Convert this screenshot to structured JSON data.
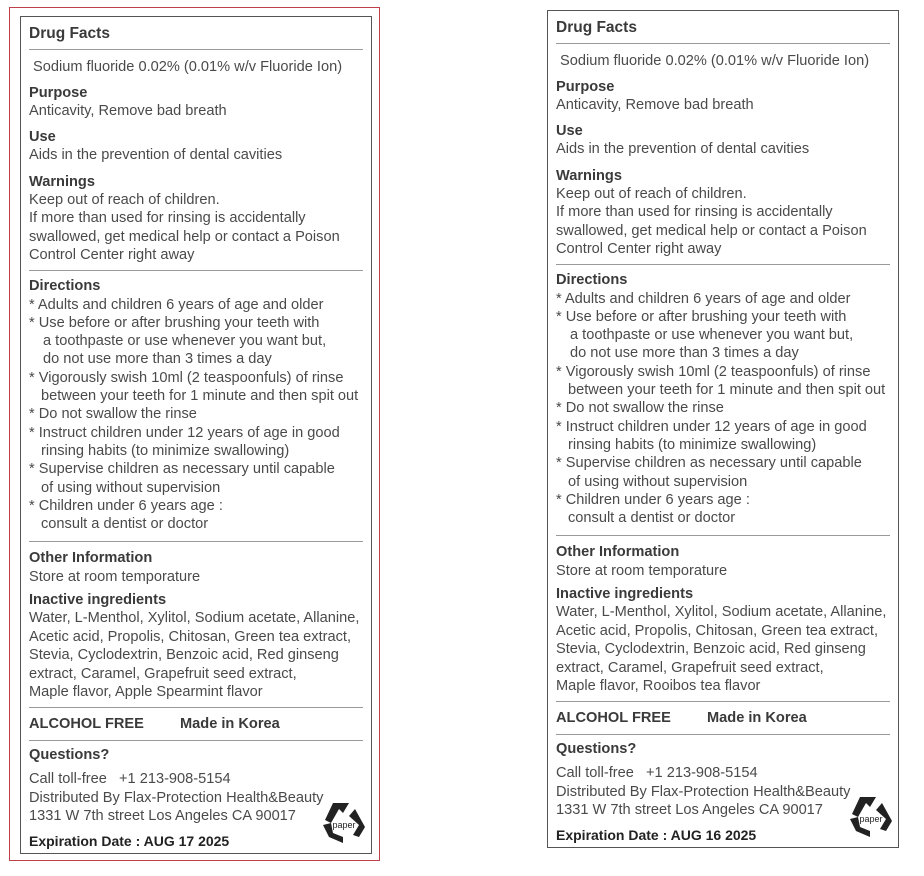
{
  "labels": [
    {
      "title": "Drug Facts",
      "active": "Sodium fluoride  0.02%  (0.01% w/v Fluoride Ion)",
      "purpose_heading": "Purpose",
      "purpose": "Anticavity, Remove bad breath",
      "use_heading": "Use",
      "use": "Aids in the prevention of dental cavities",
      "warnings_heading": "Warnings",
      "warnings": [
        "Keep out of reach of children.",
        "If more than used for rinsing is accidentally",
        "swallowed, get medical help or contact a Poison",
        "Control Center right away"
      ],
      "directions_heading": "Directions",
      "directions": [
        [
          "* Adults and children 6 years of age and older"
        ],
        [
          "* Use before or after brushing your teeth with",
          "a toothpaste or use whenever you want but,",
          "do not use more than 3 times a day"
        ],
        [
          "* Vigorously swish 10ml (2 teaspoonfuls) of rinse",
          "between your teeth for 1 minute and then spit out"
        ],
        [
          "* Do not swallow the rinse"
        ],
        [
          "* Instruct children under 12 years of age in good",
          "rinsing habits (to minimize swallowing)"
        ],
        [
          "* Supervise children as necessary until capable",
          "of using without supervision"
        ],
        [
          "* Children under 6 years age :",
          "consult a dentist or doctor"
        ]
      ],
      "other_heading": "Other Information",
      "other": "Store at room temporature",
      "inactive_heading": "Inactive ingredients",
      "inactive": [
        "Water, L-Menthol, Xylitol, Sodium acetate, Allanine,",
        "Acetic acid, Propolis, Chitosan, Green tea extract,",
        "Stevia, Cyclodextrin, Benzoic acid, Red ginseng",
        "extract, Caramel, Grapefruit seed extract,",
        "Maple flavor, Apple Spearmint flavor"
      ],
      "alcohol_free": "ALCOHOL FREE",
      "made_in": "Made in Korea",
      "questions_heading": "Questions?",
      "call": "Call toll-free   +1 213-908-5154",
      "distributor": "Distributed By Flax-Protection Health&Beauty",
      "address": "1331 W 7th street Los Angeles CA 90017",
      "expiration": "Expiration Date : AUG 17 2025",
      "recycle_text": "paper",
      "recycle_icon": "recycle-paper-icon"
    },
    {
      "title": "Drug Facts",
      "active": "Sodium fluoride  0.02%  (0.01% w/v Fluoride Ion)",
      "purpose_heading": "Purpose",
      "purpose": "Anticavity, Remove bad breath",
      "use_heading": "Use",
      "use": "Aids in the prevention of dental cavities",
      "warnings_heading": "Warnings",
      "warnings": [
        "Keep out of reach of children.",
        "If more than used for rinsing is accidentally",
        "swallowed, get medical help or contact a Poison",
        "Control Center right away"
      ],
      "directions_heading": "Directions",
      "directions": [
        [
          "* Adults and children 6 years of age and older"
        ],
        [
          "* Use before or after brushing your teeth with",
          "a toothpaste or use whenever you want but,",
          "do not use more than 3 times a day"
        ],
        [
          "* Vigorously swish 10ml (2 teaspoonfuls) of rinse",
          "between your teeth for 1 minute and then spit out"
        ],
        [
          "* Do not swallow the rinse"
        ],
        [
          "* Instruct children under 12 years of age in good",
          "rinsing habits (to minimize swallowing)"
        ],
        [
          "* Supervise children as necessary until capable",
          "of using without supervision"
        ],
        [
          "* Children under 6 years age :",
          "consult a dentist or doctor"
        ]
      ],
      "other_heading": "Other Information",
      "other": "Store at room temporature",
      "inactive_heading": "Inactive ingredients",
      "inactive": [
        "Water, L-Menthol, Xylitol, Sodium acetate, Allanine,",
        "Acetic acid, Propolis, Chitosan, Green tea extract,",
        "Stevia, Cyclodextrin, Benzoic acid, Red ginseng",
        "extract, Caramel, Grapefruit seed extract,",
        "Maple flavor, Rooibos tea flavor"
      ],
      "alcohol_free": "ALCOHOL FREE",
      "made_in": "Made in Korea",
      "questions_heading": "Questions?",
      "call": "Call toll-free   +1 213-908-5154",
      "distributor": "Distributed By Flax-Protection Health&Beauty",
      "address": "1331 W 7th street Los Angeles CA 90017",
      "expiration": "Expiration Date : AUG 16 2025",
      "recycle_text": "paper",
      "recycle_icon": "recycle-paper-icon"
    }
  ],
  "colors": {
    "selection_border": "#c0404a",
    "label_border": "#555555",
    "text": "#4a4a4a"
  }
}
